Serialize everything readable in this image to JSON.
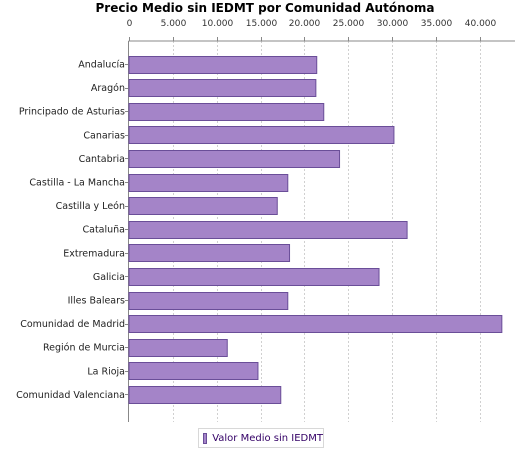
{
  "chart_data": {
    "type": "bar",
    "orientation": "horizontal",
    "title": "Precio Medio sin IEDMT por Comunidad Autónoma",
    "xlabel": "",
    "ylabel": "",
    "xlim": [
      0,
      44000
    ],
    "x_ticks": [
      "0",
      "5.000",
      "10.000",
      "15.000",
      "20.000",
      "25.000",
      "30.000",
      "35.000",
      "40.000"
    ],
    "x_tick_values": [
      0,
      5000,
      10000,
      15000,
      20000,
      25000,
      30000,
      35000,
      40000
    ],
    "x_axis_position": "top",
    "grid": true,
    "legend_position": "bottom",
    "bar_color": "#a484c8",
    "bar_border_color": "#6a4e98",
    "categories": [
      "Andalucía",
      "Aragón",
      "Principado de Asturias",
      "Canarias",
      "Cantabria",
      "Castilla - La Mancha",
      "Castilla y León",
      "Cataluña",
      "Extremadura",
      "Galicia",
      "Illes Balears",
      "Comunidad de Madrid",
      "Región de Murcia",
      "La Rioja",
      "Comunidad Valenciana"
    ],
    "series": [
      {
        "name": "Valor Medio sin IEDMT",
        "values": [
          21400,
          21300,
          22200,
          30200,
          24000,
          18100,
          16900,
          31700,
          18300,
          28500,
          18100,
          42500,
          11200,
          14700,
          17300
        ]
      }
    ]
  }
}
